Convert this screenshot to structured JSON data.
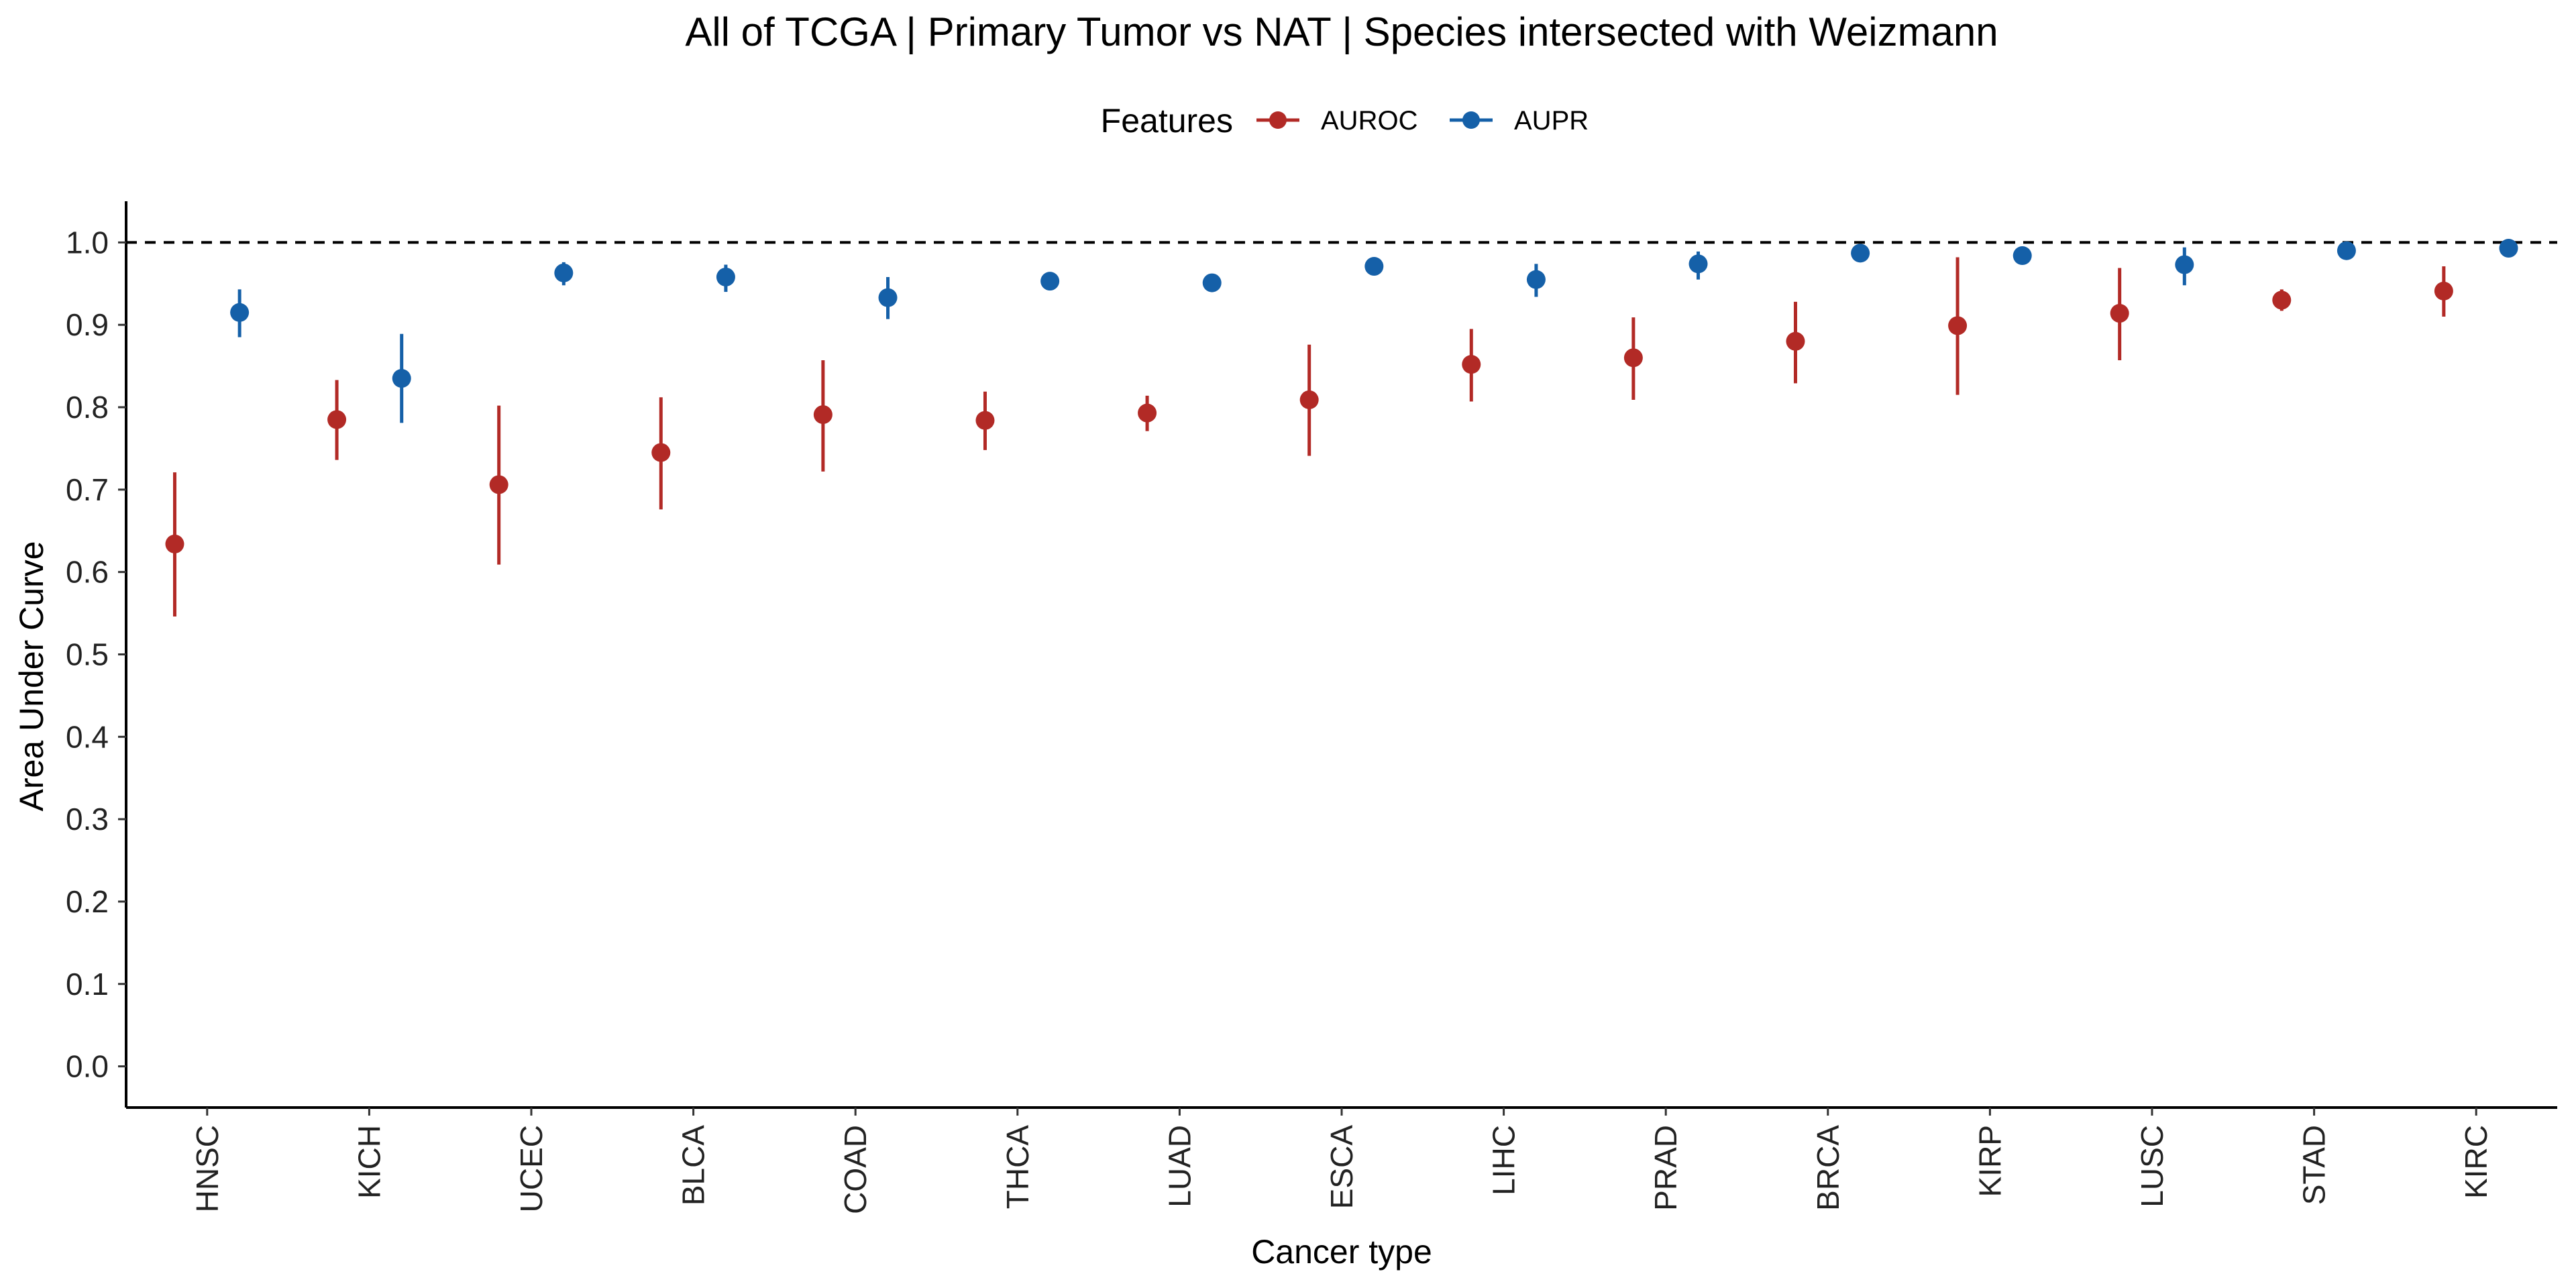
{
  "chart_data": {
    "type": "scatter",
    "title": "All of TCGA | Primary Tumor vs NAT | Species intersected with Weizmann",
    "xlabel": "Cancer type",
    "ylabel": "Area Under Curve",
    "ylim": [
      -0.05,
      1.05
    ],
    "yticks": [
      "0.0",
      "0.1",
      "0.2",
      "0.3",
      "0.4",
      "0.5",
      "0.6",
      "0.7",
      "0.8",
      "0.9",
      "1.0"
    ],
    "reference_line": 1.0,
    "grid": false,
    "legend": {
      "title": "Features",
      "position": "top"
    },
    "categories": [
      "HNSC",
      "KICH",
      "UCEC",
      "BLCA",
      "COAD",
      "THCA",
      "LUAD",
      "ESCA",
      "LIHC",
      "PRAD",
      "BRCA",
      "KIRP",
      "LUSC",
      "STAD",
      "KIRC"
    ],
    "series": [
      {
        "name": "AUROC",
        "color": "#B22A26",
        "values": [
          0.634,
          0.785,
          0.706,
          0.745,
          0.791,
          0.784,
          0.793,
          0.809,
          0.852,
          0.86,
          0.88,
          0.899,
          0.914,
          0.93,
          0.941
        ],
        "lower": [
          0.546,
          0.736,
          0.609,
          0.676,
          0.722,
          0.748,
          0.771,
          0.741,
          0.807,
          0.809,
          0.829,
          0.815,
          0.857,
          0.917,
          0.91
        ],
        "upper": [
          0.721,
          0.833,
          0.802,
          0.812,
          0.857,
          0.819,
          0.814,
          0.876,
          0.895,
          0.909,
          0.928,
          0.982,
          0.969,
          0.943,
          0.971
        ]
      },
      {
        "name": "AUPR",
        "color": "#1560A8",
        "values": [
          0.915,
          0.835,
          0.963,
          0.958,
          0.933,
          0.953,
          0.951,
          0.971,
          0.955,
          0.974,
          0.987,
          0.984,
          0.973,
          0.99,
          0.993
        ],
        "lower": [
          0.885,
          0.781,
          0.948,
          0.94,
          0.907,
          0.945,
          0.943,
          0.96,
          0.934,
          0.955,
          0.978,
          0.975,
          0.948,
          0.984,
          0.988
        ],
        "upper": [
          0.943,
          0.889,
          0.976,
          0.973,
          0.958,
          0.96,
          0.958,
          0.981,
          0.974,
          0.989,
          0.995,
          0.993,
          0.994,
          0.995,
          0.997
        ]
      }
    ]
  }
}
